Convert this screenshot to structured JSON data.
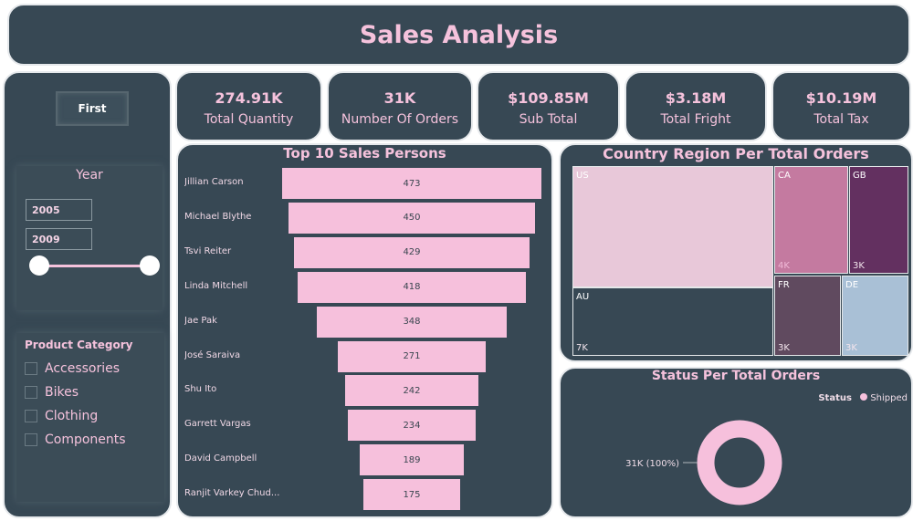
{
  "header": {
    "title": "Sales Analysis"
  },
  "filters": {
    "first_button": "First",
    "year_title": "Year",
    "year_from": "2005",
    "year_to": "2009",
    "year_range": [
      2005,
      2009
    ],
    "category_title": "Product Category",
    "categories": [
      "Accessories",
      "Bikes",
      "Clothing",
      "Components"
    ]
  },
  "kpis": [
    {
      "value": "274.91K",
      "label": "Total Quantity"
    },
    {
      "value": "31K",
      "label": "Number Of Orders"
    },
    {
      "value": "$109.85M",
      "label": "Sub Total"
    },
    {
      "value": "$3.18M",
      "label": "Total Fright"
    },
    {
      "value": "$10.19M",
      "label": "Total Tax"
    }
  ],
  "chart_data": [
    {
      "type": "bar",
      "subtype": "funnel",
      "title": "Top 10 Sales Persons",
      "categories": [
        "Jillian Carson",
        "Michael Blythe",
        "Tsvi Reiter",
        "Linda Mitchell",
        "Jae Pak",
        "José Saraiva",
        "Shu Ito",
        "Garrett Vargas",
        "David Campbell",
        "Ranjit Varkey Chud..."
      ],
      "values": [
        473,
        450,
        429,
        418,
        348,
        271,
        242,
        234,
        189,
        175
      ],
      "color": "#f6c0dc"
    },
    {
      "type": "treemap",
      "title": "Country Region Per Total Orders",
      "items": [
        {
          "name": "US",
          "label": "",
          "color": "#e8c8d9"
        },
        {
          "name": "AU",
          "label": "7K",
          "color": "#374854"
        },
        {
          "name": "CA",
          "label": "4K",
          "color": "#c47aa0"
        },
        {
          "name": "GB",
          "label": "3K",
          "color": "#633060"
        },
        {
          "name": "FR",
          "label": "3K",
          "color": "#604a5f"
        },
        {
          "name": "DE",
          "label": "3K",
          "color": "#a9c0d6"
        }
      ]
    },
    {
      "type": "pie",
      "subtype": "donut",
      "title": "Status Per Total Orders",
      "legend_title": "Status",
      "legend": [
        "Shipped"
      ],
      "legend_position": "top-right",
      "slices": [
        {
          "name": "Shipped",
          "value": 31000,
          "label": "31K (100%)",
          "color": "#f6c0dc"
        }
      ]
    }
  ]
}
